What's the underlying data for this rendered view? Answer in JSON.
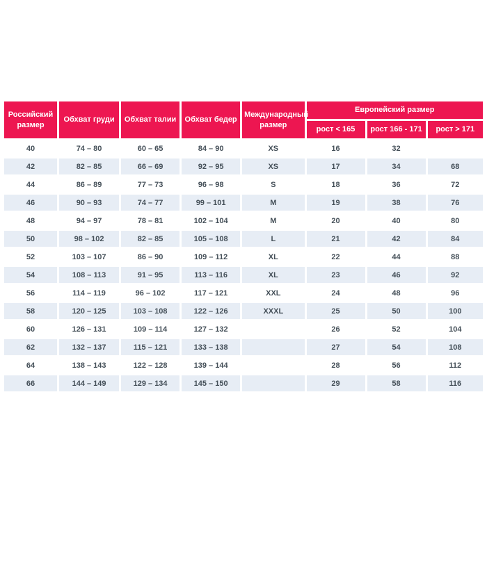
{
  "colors": {
    "header_bg": "#ED1651",
    "header_text": "#FFFFFF",
    "row_alt_bg": "#E7EDF5",
    "cell_text": "#455059",
    "page_bg": "#FFFFFF"
  },
  "table": {
    "header": {
      "russian_size": "Российский размер",
      "chest": "Обхват груди",
      "waist": "Обхват талии",
      "hips": "Обхват бедер",
      "international_size": "Международный размер",
      "european_size": "Европейский размер",
      "height_lt_165": "рост < 165",
      "height_166_171": "рост 166 - 171",
      "height_gt_171": "рост > 171"
    },
    "rows": [
      [
        "40",
        "74 – 80",
        "60 – 65",
        "84 – 90",
        "XS",
        "16",
        "32",
        ""
      ],
      [
        "42",
        "82 – 85",
        "66 – 69",
        "92 – 95",
        "XS",
        "17",
        "34",
        "68"
      ],
      [
        "44",
        "86 – 89",
        "77 – 73",
        "96 – 98",
        "S",
        "18",
        "36",
        "72"
      ],
      [
        "46",
        "90 – 93",
        "74 – 77",
        "99 – 101",
        "M",
        "19",
        "38",
        "76"
      ],
      [
        "48",
        "94 – 97",
        "78 – 81",
        "102 – 104",
        "M",
        "20",
        "40",
        "80"
      ],
      [
        "50",
        "98 – 102",
        "82 – 85",
        "105 – 108",
        "L",
        "21",
        "42",
        "84"
      ],
      [
        "52",
        "103 – 107",
        "86 – 90",
        "109 – 112",
        "XL",
        "22",
        "44",
        "88"
      ],
      [
        "54",
        "108 – 113",
        "91 – 95",
        "113 – 116",
        "XL",
        "23",
        "46",
        "92"
      ],
      [
        "56",
        "114 – 119",
        "96 – 102",
        "117 – 121",
        "XXL",
        "24",
        "48",
        "96"
      ],
      [
        "58",
        "120 – 125",
        "103 – 108",
        "122 – 126",
        "XXXL",
        "25",
        "50",
        "100"
      ],
      [
        "60",
        "126 – 131",
        "109 – 114",
        "127 – 132",
        "",
        "26",
        "52",
        "104"
      ],
      [
        "62",
        "132 – 137",
        "115 – 121",
        "133 – 138",
        "",
        "27",
        "54",
        "108"
      ],
      [
        "64",
        "138 – 143",
        "122 – 128",
        "139 – 144",
        "",
        "28",
        "56",
        "112"
      ],
      [
        "66",
        "144 – 149",
        "129 – 134",
        "145 – 150",
        "",
        "29",
        "58",
        "116"
      ]
    ]
  }
}
